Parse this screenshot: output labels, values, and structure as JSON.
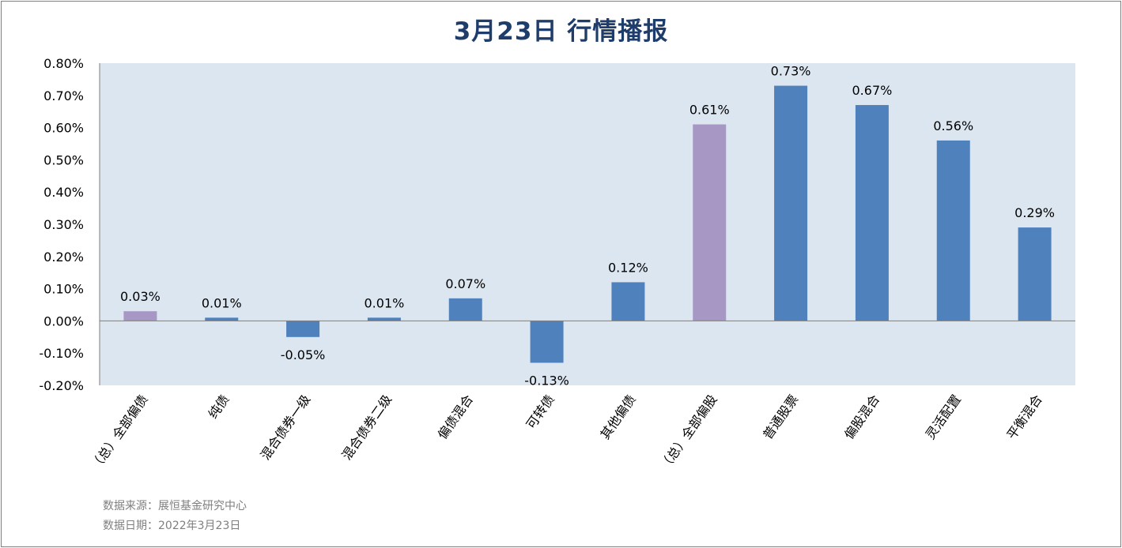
{
  "chart_data": {
    "type": "bar",
    "title": "3月23日  行情播报",
    "categories": [
      "（总）全部偏债",
      "纯债",
      "混合债券一级",
      "混合债券二级",
      "偏债混合",
      "可转债",
      "其他偏债",
      "（总）全部偏股",
      "普通股票",
      "偏股混合",
      "灵活配置",
      "平衡混合"
    ],
    "values": [
      0.03,
      0.01,
      -0.05,
      0.01,
      0.07,
      -0.13,
      0.12,
      0.61,
      0.73,
      0.67,
      0.56,
      0.29
    ],
    "data_labels": [
      "0.03%",
      "0.01%",
      "-0.05%",
      "0.01%",
      "0.07%",
      "-0.13%",
      "0.12%",
      "0.61%",
      "0.73%",
      "0.67%",
      "0.56%",
      "0.29%"
    ],
    "bar_colors": [
      "#a697c5",
      "#4f81bd",
      "#4f81bd",
      "#4f81bd",
      "#4f81bd",
      "#4f81bd",
      "#4f81bd",
      "#a697c5",
      "#4f81bd",
      "#4f81bd",
      "#4f81bd",
      "#4f81bd"
    ],
    "ylim": [
      -0.2,
      0.8
    ],
    "yticks": [
      0.8,
      0.7,
      0.6,
      0.5,
      0.4,
      0.3,
      0.2,
      0.1,
      0.0,
      -0.1,
      -0.2
    ],
    "ytick_labels": [
      "0.80%",
      "0.70%",
      "0.60%",
      "0.50%",
      "0.40%",
      "0.30%",
      "0.20%",
      "0.10%",
      "0.00%",
      "-0.10%",
      "-0.20%"
    ],
    "xlabel": "",
    "ylabel": "",
    "grid": false,
    "plot_background": "#dce6f1",
    "title_color": "#1f3d6b"
  },
  "footer": {
    "source": "数据来源：展恒基金研究中心",
    "date": "数据日期：2022年3月23日"
  }
}
